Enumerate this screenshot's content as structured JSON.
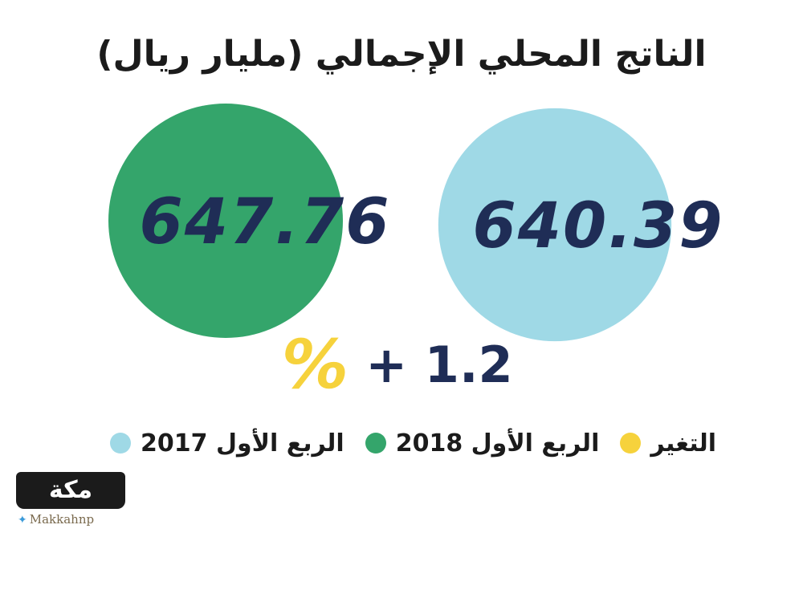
{
  "chart_data": {
    "type": "bubble",
    "title": "الناتج المحلي الإجمالي (مليار ريال)",
    "series": [
      {
        "name": "الربع الأول 2017",
        "value": 640.39,
        "value_label": "640.39",
        "color": "#9fd9e6"
      },
      {
        "name": "الربع الأول 2018",
        "value": 647.76,
        "value_label": "647.76",
        "color": "#34a56b"
      }
    ],
    "change": {
      "name": "التغير",
      "percent_symbol": "%",
      "value_label": "+ 1.2",
      "value": 1.2,
      "color": "#f6d23c"
    }
  },
  "logo": {
    "name": "مكة",
    "handle": "Makkahnp"
  }
}
